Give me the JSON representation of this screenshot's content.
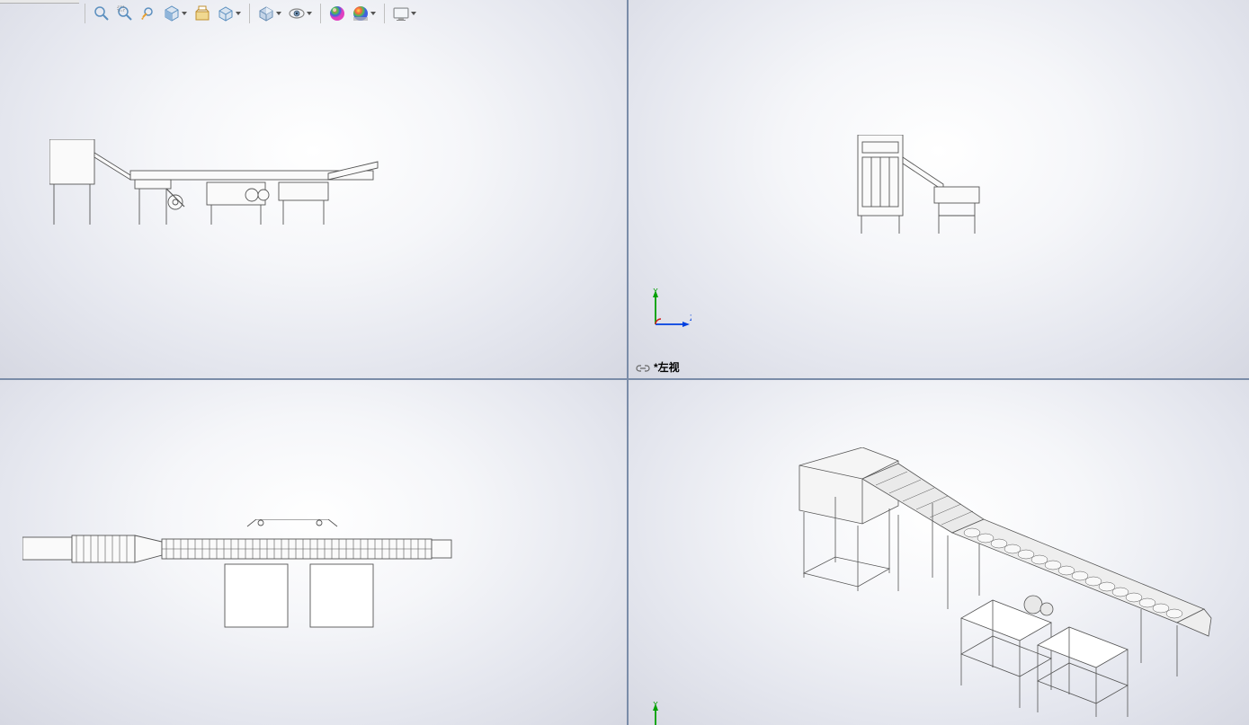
{
  "toolbar": {
    "icons": [
      {
        "name": "zoom-to-fit-icon",
        "hasDropdown": false
      },
      {
        "name": "zoom-area-icon",
        "hasDropdown": false
      },
      {
        "name": "previous-view-icon",
        "hasDropdown": false
      },
      {
        "name": "section-view-icon",
        "hasDropdown": true
      },
      {
        "name": "dynamic-annotation-icon",
        "hasDropdown": false
      },
      {
        "name": "view-orientation-icon",
        "hasDropdown": true
      },
      {
        "name": "display-style-icon",
        "hasDropdown": true
      },
      {
        "name": "hide-show-icon",
        "hasDropdown": true
      },
      {
        "name": "edit-appearance-icon",
        "hasDropdown": false
      },
      {
        "name": "apply-scene-icon",
        "hasDropdown": true
      },
      {
        "name": "view-settings-icon",
        "hasDropdown": true
      }
    ]
  },
  "viewports": {
    "topLeft": {
      "hasTriad": false,
      "hasLabel": false
    },
    "topRight": {
      "label": "*左视",
      "triad": {
        "up": "Y",
        "right": "Z",
        "upColor": "#00a000",
        "rightColor": "#0040e0",
        "arcColor": "#d02020"
      }
    },
    "bottomLeft": {
      "hasTriad": false,
      "hasLabel": false
    },
    "bottomRight": {
      "triad": {
        "up": "Y",
        "upColor": "#00a000"
      }
    }
  },
  "colors": {
    "viewportBorder": "#7a8ca8",
    "modelStroke": "#555555",
    "bgCenter": "#ffffff",
    "bgEdge": "#d6d8e2"
  }
}
